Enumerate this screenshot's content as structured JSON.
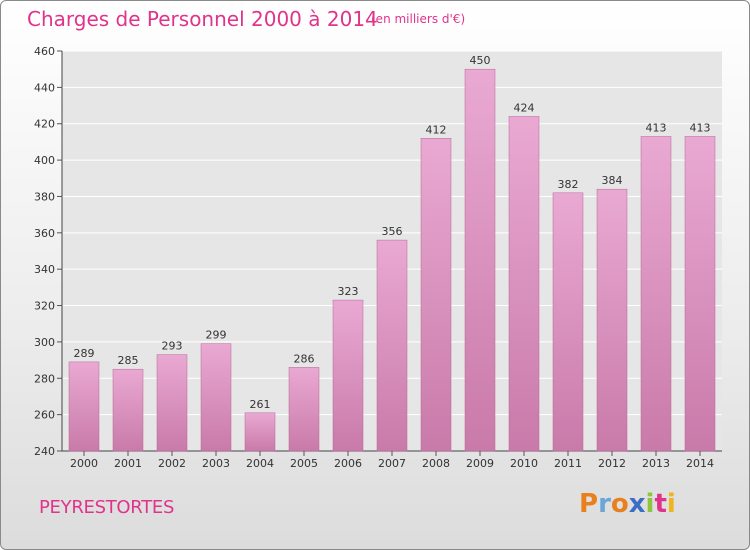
{
  "header": {
    "title": "Charges de Personnel 2000 à 2014",
    "subtitle": "(en milliers d'€)"
  },
  "footer": {
    "town": "PEYRESTORTES",
    "logo_letters": [
      "P",
      "r",
      "o",
      "x",
      "i",
      "t",
      "i"
    ]
  },
  "colors": {
    "accent": "#e0348c",
    "bar_light": "#e9a9d2",
    "bar_dark": "#c97aa9"
  },
  "chart_data": {
    "type": "bar",
    "title": "Charges de Personnel 2000 à 2014",
    "subtitle": "(en milliers d'€)",
    "categories": [
      "2000",
      "2001",
      "2002",
      "2003",
      "2004",
      "2005",
      "2006",
      "2007",
      "2008",
      "2009",
      "2010",
      "2011",
      "2012",
      "2013",
      "2014"
    ],
    "values": [
      289,
      285,
      293,
      299,
      261,
      286,
      323,
      356,
      412,
      450,
      424,
      382,
      384,
      413,
      413
    ],
    "ylim": [
      240,
      460
    ],
    "yticks": [
      240,
      260,
      280,
      300,
      320,
      340,
      360,
      380,
      400,
      420,
      440,
      460
    ],
    "grid": true,
    "legend": "none"
  }
}
